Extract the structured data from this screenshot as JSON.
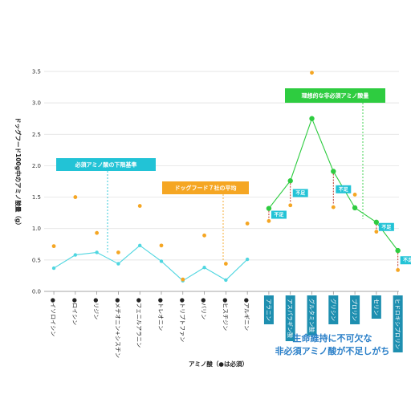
{
  "chart_data": {
    "type": "line",
    "ylabel": "ドッグフード100g中のアミノ酸量（g）",
    "xlabel": "アミノ酸（●は必須）",
    "ylim": [
      0,
      3.5
    ],
    "yticks": [
      "0.0",
      "0.5",
      "1.0",
      "1.5",
      "2.0",
      "2.5",
      "3.0",
      "3.5"
    ],
    "grid": true,
    "categories": [
      {
        "label": "●イソロイシン",
        "essential": true
      },
      {
        "label": "●ロイシン",
        "essential": true
      },
      {
        "label": "●リジン",
        "essential": true
      },
      {
        "label": "●メチオニン+シスチン",
        "essential": true
      },
      {
        "label": "●フェニルアラニン",
        "essential": true
      },
      {
        "label": "●トレオニン",
        "essential": true
      },
      {
        "label": "●トリプトファン",
        "essential": true
      },
      {
        "label": "●バリン",
        "essential": true
      },
      {
        "label": "●ヒスチジン",
        "essential": true
      },
      {
        "label": "●アルギニン",
        "essential": true
      },
      {
        "label": "アラニン",
        "essential": false
      },
      {
        "label": "アスパラギン酸",
        "essential": false
      },
      {
        "label": "グルタミン酸",
        "essential": false
      },
      {
        "label": "グリシン",
        "essential": false
      },
      {
        "label": "プロリン",
        "essential": false
      },
      {
        "label": "セリン",
        "essential": false
      },
      {
        "label": "ヒドロキシプロリン",
        "essential": false
      }
    ],
    "series": [
      {
        "name": "必須アミノ酸の下限基準",
        "color": "#4fd6e0",
        "style": "line",
        "values": [
          0.37,
          0.58,
          0.62,
          0.44,
          0.73,
          0.48,
          0.17,
          0.38,
          0.18,
          0.51,
          null,
          null,
          null,
          null,
          null,
          null,
          null
        ]
      },
      {
        "name": "ドッグフード7社の平均",
        "color": "#f5a623",
        "style": "dot",
        "values": [
          0.72,
          1.5,
          0.93,
          0.62,
          1.36,
          0.73,
          0.19,
          0.89,
          0.44,
          1.08,
          1.12,
          1.37,
          3.48,
          1.34,
          1.54,
          0.95,
          0.34
        ]
      },
      {
        "name": "理想的な非必須アミノ酸量",
        "color": "#2ecc40",
        "style": "line",
        "values": [
          null,
          null,
          null,
          null,
          null,
          null,
          null,
          null,
          null,
          null,
          1.32,
          1.76,
          2.75,
          1.91,
          1.33,
          1.1,
          0.65
        ]
      }
    ],
    "callouts": [
      {
        "text": "必須アミノ酸の下限基準",
        "bg": "#22c3d6",
        "fg": "#ffffff"
      },
      {
        "text": "ドッグフード７社の平均",
        "bg": "#f5a623",
        "fg": "#ffffff"
      },
      {
        "text": "理想的な非必須アミノ酸量",
        "bg": "#2ecc40",
        "fg": "#ffffff"
      }
    ],
    "shortage_tag": "不足",
    "shortage_indices": [
      10,
      11,
      13,
      15,
      16
    ],
    "note_lines": [
      "生命維持に不可欠な",
      "非必須アミノ酸が不足しがち"
    ]
  }
}
